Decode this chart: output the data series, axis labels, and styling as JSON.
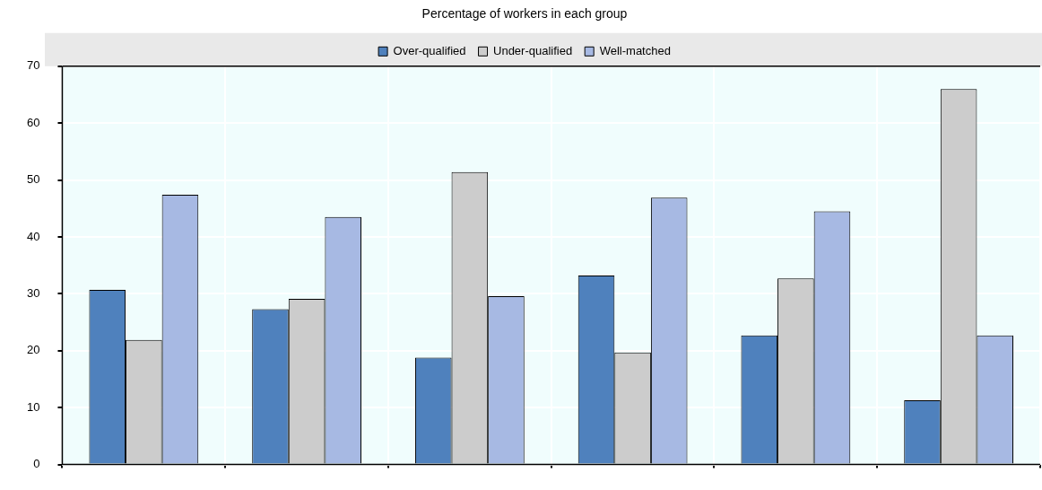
{
  "chart_data": {
    "type": "bar",
    "title": "Percentage of workers in each group",
    "categories": [
      null,
      null,
      null,
      null,
      null,
      null
    ],
    "series": [
      {
        "name": "Over-qualified",
        "color": "#4f81bd",
        "values": [
          30.7,
          27.3,
          18.8,
          33.2,
          22.7,
          11.3
        ]
      },
      {
        "name": "Under-qualified",
        "color": "#cccccc",
        "values": [
          21.9,
          29.1,
          51.4,
          19.7,
          32.7,
          66.0
        ]
      },
      {
        "name": "Well-matched",
        "color": "#a7b9e3",
        "values": [
          47.4,
          43.5,
          29.6,
          46.9,
          44.5,
          22.7
        ]
      }
    ],
    "ylim": [
      0,
      70
    ],
    "yticks": [
      0,
      10,
      20,
      30,
      40,
      50,
      60,
      70
    ],
    "grid": true,
    "legend": "top"
  }
}
